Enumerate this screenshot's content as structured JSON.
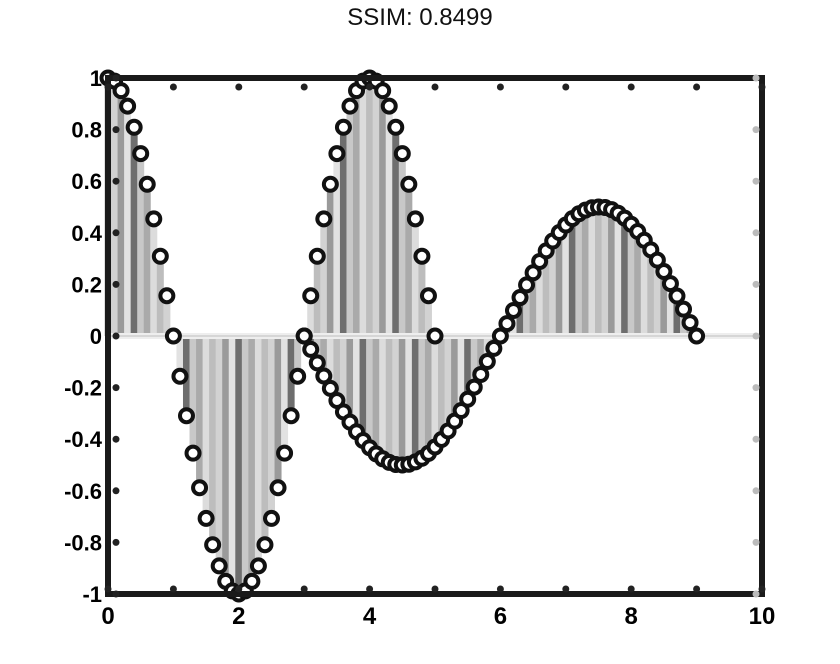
{
  "chart_data": {
    "type": "stem",
    "title": "SSIM: 0.8499",
    "xlim": [
      0,
      10
    ],
    "ylim": [
      -1,
      1
    ],
    "xticks": [
      0,
      1,
      2,
      3,
      4,
      5,
      6,
      7,
      8,
      9,
      10
    ],
    "xtick_labels": [
      "0",
      "",
      "2",
      "",
      "4",
      "",
      "6",
      "",
      "8",
      "",
      "10"
    ],
    "yticks": [
      -1,
      -0.8,
      -0.6,
      -0.4,
      -0.2,
      0,
      0.2,
      0.4,
      0.6,
      0.8,
      1
    ],
    "ytick_labels": [
      "-1",
      "-0.8",
      "-0.6",
      "-0.4",
      "-0.2",
      "0",
      "0.2",
      "0.4",
      "0.6",
      "0.8",
      "1"
    ],
    "grid": false,
    "series": [
      {
        "x": [
          0.0,
          0.1,
          0.2,
          0.3,
          0.4,
          0.5,
          0.6,
          0.7,
          0.8,
          0.9,
          1.0,
          1.1,
          1.2,
          1.3,
          1.4,
          1.5,
          1.6,
          1.7,
          1.8,
          1.9,
          2.0,
          2.1,
          2.2,
          2.3,
          2.4,
          2.5,
          2.6,
          2.7,
          2.8,
          2.9,
          3.0,
          3.1,
          3.2,
          3.3,
          3.4,
          3.5,
          3.6,
          3.7,
          3.8,
          3.9,
          4.0,
          4.1,
          4.2,
          4.3,
          4.4,
          4.5,
          4.6,
          4.7,
          4.8,
          4.9,
          5.0
        ],
        "values": [
          1.0,
          0.988,
          0.951,
          0.891,
          0.809,
          0.707,
          0.588,
          0.454,
          0.309,
          0.156,
          0.0,
          -0.156,
          -0.309,
          -0.454,
          -0.588,
          -0.707,
          -0.809,
          -0.891,
          -0.951,
          -0.988,
          -1.0,
          -0.988,
          -0.951,
          -0.891,
          -0.809,
          -0.707,
          -0.588,
          -0.454,
          -0.309,
          -0.156,
          0.0,
          0.156,
          0.309,
          0.454,
          0.588,
          0.707,
          0.809,
          0.891,
          0.951,
          0.988,
          1.0,
          0.988,
          0.951,
          0.891,
          0.809,
          0.707,
          0.588,
          0.454,
          0.309,
          0.156,
          0.0
        ]
      },
      {
        "x": [
          3.0,
          3.1,
          3.2,
          3.3,
          3.4,
          3.5,
          3.6,
          3.7,
          3.8,
          3.9,
          4.0,
          4.1,
          4.2,
          4.3,
          4.4,
          4.5,
          4.6,
          4.7,
          4.8,
          4.9,
          5.0,
          5.1,
          5.2,
          5.3,
          5.4,
          5.5,
          5.6,
          5.7,
          5.8,
          5.9,
          6.0,
          6.1,
          6.2,
          6.3,
          6.4,
          6.5,
          6.6,
          6.7,
          6.8,
          6.9,
          7.0,
          7.1,
          7.2,
          7.3,
          7.4,
          7.5,
          7.6,
          7.7,
          7.8,
          7.9,
          8.0,
          8.1,
          8.2,
          8.3,
          8.4,
          8.5,
          8.6,
          8.7,
          8.8,
          8.9,
          9.0
        ],
        "values": [
          0.0,
          -0.052,
          -0.104,
          -0.155,
          -0.203,
          -0.25,
          -0.294,
          -0.334,
          -0.371,
          -0.405,
          -0.433,
          -0.457,
          -0.476,
          -0.49,
          -0.498,
          -0.5,
          -0.497,
          -0.488,
          -0.474,
          -0.455,
          -0.43,
          -0.401,
          -0.368,
          -0.33,
          -0.289,
          -0.245,
          -0.198,
          -0.149,
          -0.099,
          -0.048,
          0.0,
          0.048,
          0.099,
          0.149,
          0.198,
          0.245,
          0.289,
          0.33,
          0.368,
          0.401,
          0.43,
          0.455,
          0.474,
          0.488,
          0.497,
          0.5,
          0.498,
          0.49,
          0.476,
          0.457,
          0.433,
          0.405,
          0.371,
          0.334,
          0.294,
          0.25,
          0.203,
          0.155,
          0.104,
          0.052,
          0.0
        ]
      }
    ]
  }
}
